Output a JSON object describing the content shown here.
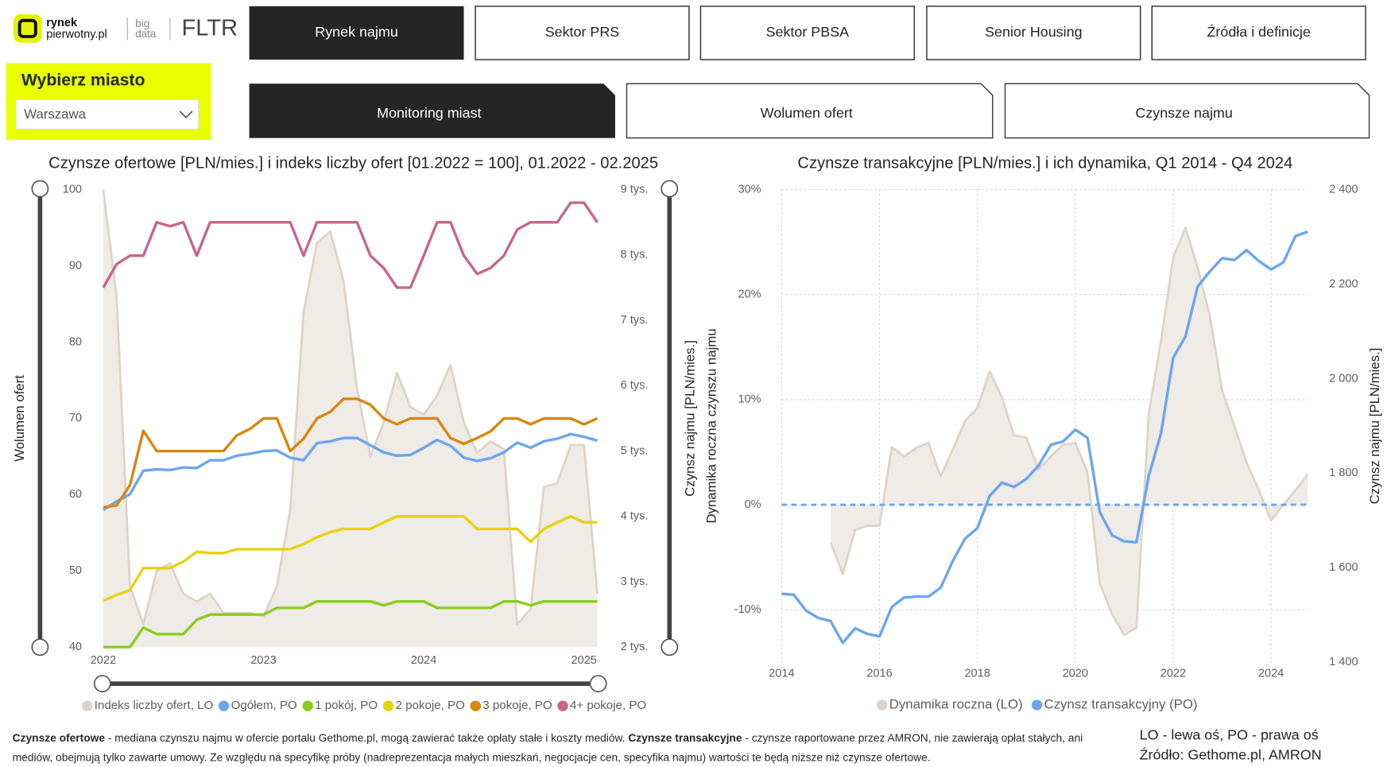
{
  "header": {
    "logo_top": "rynek",
    "logo_bottom": "pierwotny.pl",
    "brand_top": "big",
    "brand_bottom": "data",
    "brand": "FLTR"
  },
  "city_selector": {
    "label": "Wybierz miasto",
    "value": "Warszawa"
  },
  "nav": [
    "Rynek najmu",
    "Sektor PRS",
    "Sektor PBSA",
    "Senior Housing",
    "Źródła i definicje"
  ],
  "subnav": [
    "Monitoring miast",
    "Wolumen ofert",
    "Czynsze najmu"
  ],
  "footer": {
    "note": [
      {
        "text": "Czynsze ofertowe",
        "bold": true
      },
      {
        "text": " - mediana czynszu najmu w ofercie portalu Gethome.pl, mogą zawierać także opłaty stałe i koszty mediów. ",
        "bold": false
      },
      {
        "text": "Czynsze transakcyjne",
        "bold": true
      },
      {
        "text": " - czynsze raportowane przez AMRON, nie zawierają opłat stałych, ani mediów, obejmują tylko zawarte umowy. Ze względu na specyfikę próby (nadreprezentacja małych mieszkań, negocjacje cen, specyfika najmu) wartości te będą niższe niż czynsze ofertowe.",
        "bold": false
      }
    ],
    "axis_note": "LO - lewa oś, PO - prawa oś",
    "source": "Źródło: Gethome.pl, AMRON"
  },
  "chart_data": [
    {
      "type": "line",
      "title": "Czynsze ofertowe [PLN/mies.] i indeks liczby ofert [01.2022 = 100], 01.2022 - 02.2025",
      "ylabel": "Wolumen ofert",
      "y2label": "Czynsz najmu [PLN/mies.]",
      "grid": false,
      "x": [
        "01.2022",
        "02.2022",
        "03.2022",
        "04.2022",
        "05.2022",
        "06.2022",
        "07.2022",
        "08.2022",
        "09.2022",
        "10.2022",
        "11.2022",
        "12.2022",
        "01.2023",
        "02.2023",
        "03.2023",
        "04.2023",
        "05.2023",
        "06.2023",
        "07.2023",
        "08.2023",
        "09.2023",
        "10.2023",
        "11.2023",
        "12.2023",
        "01.2024",
        "02.2024",
        "03.2024",
        "04.2024",
        "05.2024",
        "06.2024",
        "07.2024",
        "08.2024",
        "09.2024",
        "10.2024",
        "11.2024",
        "12.2024",
        "01.2025",
        "02.2025"
      ],
      "xlim": [
        "01.2022",
        "02.2025"
      ],
      "xticks": [
        {
          "value": "01.2022",
          "label": "2022"
        },
        {
          "value": "01.2023",
          "label": "2023"
        },
        {
          "value": "01.2024",
          "label": "2024"
        },
        {
          "value": "01.2025",
          "label": "2025"
        }
      ],
      "ylim": [
        40,
        100
      ],
      "yticks": [
        40,
        50,
        60,
        70,
        80,
        90,
        100
      ],
      "y2lim": [
        2000,
        9000
      ],
      "y2ticks": [
        {
          "value": 2000,
          "label": "2 tys."
        },
        {
          "value": 3000,
          "label": "3 tys."
        },
        {
          "value": 4000,
          "label": "4 tys."
        },
        {
          "value": 5000,
          "label": "5 tys."
        },
        {
          "value": 6000,
          "label": "6 tys."
        },
        {
          "value": 7000,
          "label": "7 tys."
        },
        {
          "value": 8000,
          "label": "8 tys."
        },
        {
          "value": 9000,
          "label": "9 tys."
        }
      ],
      "series": [
        {
          "name": "Indeks liczby ofert, LO",
          "type": "area",
          "color": "#ddd5ca",
          "fill_color": "#efebe6",
          "axis": "y",
          "values": [
            100,
            86,
            48,
            43,
            50,
            51,
            47,
            46,
            47,
            44.5,
            44.5,
            44.5,
            44,
            48,
            58,
            84,
            93,
            94.5,
            88,
            74,
            65,
            69.5,
            76,
            71.5,
            70.5,
            73,
            77,
            69.5,
            65.5,
            67,
            66,
            43,
            45,
            61,
            61.5,
            66.5,
            66.5,
            47
          ]
        },
        {
          "name": "Ogółem, PO",
          "type": "line",
          "color": "#6aa6f0",
          "axis": "y2",
          "values": [
            4100,
            4230,
            4340,
            4700,
            4720,
            4710,
            4750,
            4740,
            4860,
            4860,
            4930,
            4960,
            5000,
            5010,
            4900,
            4860,
            5120,
            5150,
            5200,
            5200,
            5090,
            4980,
            4930,
            4940,
            5050,
            5170,
            5080,
            4900,
            4850,
            4890,
            4980,
            5130,
            5050,
            5150,
            5190,
            5260,
            5220,
            5160
          ]
        },
        {
          "name": "1 pokój, PO",
          "type": "line",
          "color": "#8ccc1e",
          "axis": "y2",
          "values": [
            2000,
            2000,
            2000,
            2300,
            2200,
            2200,
            2200,
            2420,
            2500,
            2500,
            2500,
            2500,
            2500,
            2600,
            2600,
            2600,
            2700,
            2700,
            2700,
            2700,
            2700,
            2640,
            2700,
            2700,
            2700,
            2600,
            2600,
            2600,
            2600,
            2600,
            2700,
            2700,
            2640,
            2700,
            2700,
            2700,
            2700,
            2700
          ]
        },
        {
          "name": "2 pokoje, PO",
          "type": "line",
          "color": "#e8d20a",
          "axis": "y2",
          "values": [
            2710,
            2800,
            2870,
            3210,
            3210,
            3210,
            3310,
            3460,
            3440,
            3440,
            3500,
            3500,
            3500,
            3500,
            3500,
            3580,
            3680,
            3760,
            3810,
            3810,
            3810,
            3910,
            4000,
            4000,
            4000,
            4000,
            4000,
            4000,
            3810,
            3810,
            3810,
            3810,
            3610,
            3810,
            3910,
            4000,
            3910,
            3910
          ]
        },
        {
          "name": "3 pokoje, PO",
          "type": "line",
          "color": "#d9860a",
          "axis": "y2",
          "values": [
            4140,
            4170,
            4480,
            5310,
            5000,
            5000,
            5000,
            5000,
            5000,
            5000,
            5240,
            5340,
            5500,
            5500,
            5000,
            5190,
            5500,
            5600,
            5800,
            5800,
            5710,
            5500,
            5410,
            5500,
            5500,
            5500,
            5200,
            5110,
            5200,
            5300,
            5500,
            5500,
            5410,
            5500,
            5500,
            5500,
            5410,
            5500
          ]
        },
        {
          "name": "4+ pokoje, PO",
          "type": "line",
          "color": "#c9648e",
          "axis": "y2",
          "values": [
            7500,
            7860,
            7990,
            7990,
            8500,
            8440,
            8500,
            7990,
            8500,
            8500,
            8500,
            8500,
            8500,
            8500,
            8500,
            7990,
            8500,
            8500,
            8500,
            8500,
            7990,
            7800,
            7500,
            7500,
            7990,
            8500,
            8500,
            7990,
            7710,
            7800,
            7990,
            8390,
            8500,
            8500,
            8500,
            8800,
            8800,
            8500
          ]
        }
      ]
    },
    {
      "type": "line",
      "title": "Czynsze transakcyjne [PLN/mies.] i ich dynamika, Q1 2014 - Q4 2024",
      "ylabel": "Dynamika roczna czynszu najmu",
      "y2label": "Czynsz najmu [PLN/mies.]",
      "grid": true,
      "zero_line": true,
      "x": [
        "Q1 2014",
        "Q2 2014",
        "Q3 2014",
        "Q4 2014",
        "Q1 2015",
        "Q2 2015",
        "Q3 2015",
        "Q4 2015",
        "Q1 2016",
        "Q2 2016",
        "Q3 2016",
        "Q4 2016",
        "Q1 2017",
        "Q2 2017",
        "Q3 2017",
        "Q4 2017",
        "Q1 2018",
        "Q2 2018",
        "Q3 2018",
        "Q4 2018",
        "Q1 2019",
        "Q2 2019",
        "Q3 2019",
        "Q4 2019",
        "Q1 2020",
        "Q2 2020",
        "Q3 2020",
        "Q4 2020",
        "Q1 2021",
        "Q2 2021",
        "Q3 2021",
        "Q4 2021",
        "Q1 2022",
        "Q2 2022",
        "Q3 2022",
        "Q4 2022",
        "Q1 2023",
        "Q2 2023",
        "Q3 2023",
        "Q4 2023",
        "Q1 2024",
        "Q2 2024",
        "Q3 2024",
        "Q4 2024"
      ],
      "xlim": [
        "Q1 2014",
        "Q4 2024"
      ],
      "xticks": [
        {
          "value": "Q1 2014",
          "label": "2014"
        },
        {
          "value": "Q1 2016",
          "label": "2016"
        },
        {
          "value": "Q1 2018",
          "label": "2018"
        },
        {
          "value": "Q1 2020",
          "label": "2020"
        },
        {
          "value": "Q1 2022",
          "label": "2022"
        },
        {
          "value": "Q1 2024",
          "label": "2024"
        }
      ],
      "ylim": [
        -15,
        30
      ],
      "yticks": [
        {
          "value": -10,
          "label": "-10%"
        },
        {
          "value": 0,
          "label": "0%"
        },
        {
          "value": 10,
          "label": "10%"
        },
        {
          "value": 20,
          "label": "20%"
        },
        {
          "value": 30,
          "label": "30%"
        }
      ],
      "y2lim": [
        1400,
        2400
      ],
      "y2ticks": [
        {
          "value": 1400,
          "label": "1 400"
        },
        {
          "value": 1600,
          "label": "1 600"
        },
        {
          "value": 1800,
          "label": "1 800"
        },
        {
          "value": 2000,
          "label": "2 000"
        },
        {
          "value": 2200,
          "label": "2 200"
        },
        {
          "value": 2400,
          "label": "2 400"
        }
      ],
      "series": [
        {
          "name": "Dynamika roczna (LO)",
          "type": "area",
          "color": "#ddd5ca",
          "fill_color": "#efebe6",
          "axis": "y",
          "values": [
            null,
            null,
            null,
            null,
            -3.6,
            -6.6,
            -2.4,
            -2.0,
            -2.0,
            5.5,
            4.6,
            5.4,
            5.9,
            2.7,
            5.3,
            8.0,
            9.2,
            12.7,
            10.2,
            6.6,
            6.4,
            3.4,
            4.6,
            5.7,
            5.9,
            3.1,
            -7.5,
            -10.4,
            -12.4,
            -11.7,
            8.6,
            15.6,
            23.5,
            26.4,
            22.6,
            18.0,
            10.9,
            7.5,
            4.0,
            1.4,
            -1.5,
            0,
            1.4,
            2.9
          ]
        },
        {
          "name": "Czynsz transakcyjny (PO)",
          "type": "line",
          "color": "#6aa6f0",
          "axis": "y2",
          "values": [
            1545,
            1543,
            1509,
            1494,
            1487,
            1441,
            1472,
            1460,
            1455,
            1517,
            1537,
            1539,
            1539,
            1558,
            1615,
            1662,
            1684,
            1752,
            1780,
            1771,
            1788,
            1816,
            1860,
            1867,
            1892,
            1875,
            1718,
            1669,
            1656,
            1654,
            1794,
            1884,
            2044,
            2089,
            2195,
            2227,
            2255,
            2251,
            2272,
            2249,
            2231,
            2246,
            2302,
            2311
          ]
        }
      ]
    }
  ]
}
